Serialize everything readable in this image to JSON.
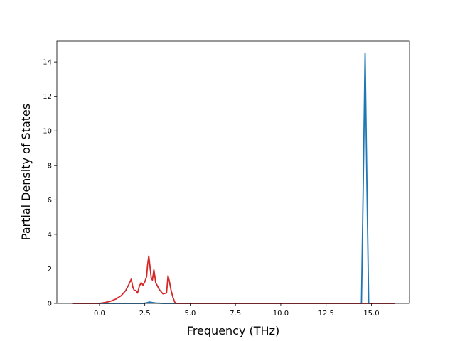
{
  "chart_data": {
    "type": "line",
    "title": "",
    "xlabel": "Frequency (THz)",
    "ylabel": "Partial Density of States",
    "xlim": [
      -2.35,
      17.1
    ],
    "ylim": [
      0,
      15.2
    ],
    "xticks": [
      0.0,
      2.5,
      5.0,
      7.5,
      10.0,
      12.5,
      15.0
    ],
    "xtick_labels": [
      "0.0",
      "2.5",
      "5.0",
      "7.5",
      "10.0",
      "12.5",
      "15.0"
    ],
    "yticks": [
      0,
      2,
      4,
      6,
      8,
      10,
      12,
      14
    ],
    "ytick_labels": [
      "0",
      "2",
      "4",
      "6",
      "8",
      "10",
      "12",
      "14"
    ],
    "grid": false,
    "legend": "none",
    "series": [
      {
        "color": "#1f77b4",
        "x": [
          -1.5,
          2.4,
          2.6,
          2.75,
          2.9,
          3.1,
          3.5,
          14.3,
          14.45,
          14.55,
          14.65,
          14.75,
          14.85,
          16.3
        ],
        "y": [
          0,
          0,
          0.03,
          0.08,
          0.05,
          0.02,
          0,
          0,
          0,
          7.0,
          14.5,
          7.0,
          0,
          0
        ]
      },
      {
        "color": "#d62728",
        "x": [
          -1.5,
          0.0,
          0.3,
          0.6,
          0.9,
          1.2,
          1.45,
          1.6,
          1.75,
          1.85,
          1.92,
          2.0,
          2.1,
          2.2,
          2.3,
          2.4,
          2.5,
          2.6,
          2.65,
          2.72,
          2.78,
          2.85,
          2.92,
          3.0,
          3.05,
          3.1,
          3.2,
          3.3,
          3.5,
          3.7,
          3.78,
          3.85,
          3.95,
          4.05,
          4.15,
          4.2,
          16.3
        ],
        "y": [
          0,
          0,
          0.05,
          0.12,
          0.25,
          0.45,
          0.75,
          1.05,
          1.4,
          0.9,
          0.75,
          0.75,
          0.6,
          1.0,
          1.2,
          1.05,
          1.25,
          1.55,
          2.2,
          2.75,
          2.2,
          1.5,
          1.35,
          1.95,
          1.6,
          1.2,
          1.0,
          0.8,
          0.55,
          0.6,
          1.6,
          1.3,
          0.75,
          0.35,
          0.08,
          0,
          0
        ]
      }
    ]
  }
}
